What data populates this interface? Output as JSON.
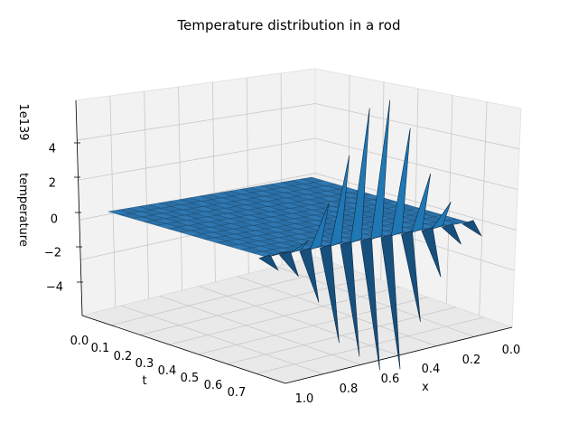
{
  "chart_data": {
    "type": "surface3d",
    "title": "Temperature distribution in a rod",
    "xlabel": "x",
    "ylabel": "t",
    "zlabel": "temperature",
    "z_offset_label": "1e139",
    "x_ticks": [
      "0.0",
      "0.2",
      "0.4",
      "0.6",
      "0.8",
      "1.0"
    ],
    "t_ticks": [
      "0.0",
      "0.1",
      "0.2",
      "0.3",
      "0.4",
      "0.5",
      "0.6",
      "0.7"
    ],
    "z_ticks": [
      "4",
      "2",
      "0",
      "−2",
      "−4"
    ],
    "xlim": [
      0,
      1
    ],
    "tlim": [
      0,
      0.75
    ],
    "zlim": [
      -5.8,
      5.8
    ],
    "surface_color": "#1f77b4",
    "surface_description": "flat surface at temperature 0 except a row of large alternating spikes along the t = 0.75 edge",
    "spikes": [
      {
        "x": 0.0,
        "z": -0.4
      },
      {
        "x": 0.05,
        "z": 0.3
      },
      {
        "x": 0.1,
        "z": -0.8
      },
      {
        "x": 0.15,
        "z": 0.6
      },
      {
        "x": 0.2,
        "z": -2.0
      },
      {
        "x": 0.25,
        "z": 2.0
      },
      {
        "x": 0.3,
        "z": -3.8
      },
      {
        "x": 0.35,
        "z": 3.8
      },
      {
        "x": 0.4,
        "z": -4.5
      },
      {
        "x": 0.45,
        "z": 5.6
      },
      {
        "x": 0.5,
        "z": -5.2
      },
      {
        "x": 0.55,
        "z": 5.8
      },
      {
        "x": 0.6,
        "z": -5.3
      },
      {
        "x": 0.65,
        "z": 4.5
      },
      {
        "x": 0.7,
        "z": -3.5
      },
      {
        "x": 0.75,
        "z": 2.5
      },
      {
        "x": 0.8,
        "z": -1.8
      },
      {
        "x": 0.85,
        "z": 1.2
      },
      {
        "x": 0.9,
        "z": -0.6
      },
      {
        "x": 1.0,
        "z": -0.4
      }
    ]
  }
}
